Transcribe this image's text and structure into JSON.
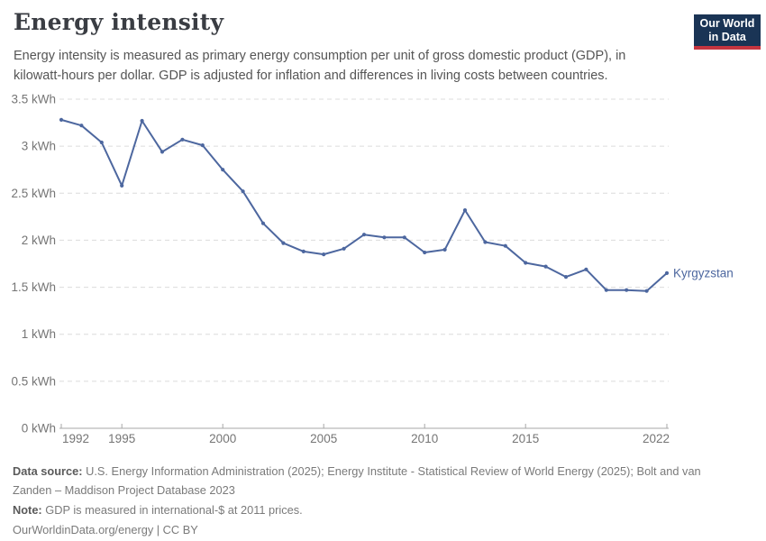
{
  "header": {
    "title": "Energy intensity",
    "subtitle_lines": [
      "Energy intensity is measured as primary energy consumption per unit of gross domestic product (GDP), in",
      "kilowatt-hours per dollar. GDP is adjusted for inflation and differences in living costs between countries."
    ],
    "logo": {
      "line1": "Our World",
      "line2": "in Data"
    }
  },
  "chart_data": {
    "type": "line",
    "title": "Energy intensity",
    "unit": "kWh",
    "x": [
      1992,
      1993,
      1994,
      1995,
      1996,
      1997,
      1998,
      1999,
      2000,
      2001,
      2002,
      2003,
      2004,
      2005,
      2006,
      2007,
      2008,
      2009,
      2010,
      2011,
      2012,
      2013,
      2014,
      2015,
      2016,
      2017,
      2018,
      2019,
      2020,
      2021,
      2022
    ],
    "series": [
      {
        "name": "Kyrgyzstan",
        "color": "#4d679f",
        "values": [
          3.28,
          3.22,
          3.04,
          2.58,
          3.27,
          2.94,
          3.07,
          3.01,
          2.75,
          2.52,
          2.18,
          1.97,
          1.88,
          1.85,
          1.91,
          2.06,
          2.03,
          2.03,
          1.87,
          1.9,
          2.32,
          1.98,
          1.94,
          1.76,
          1.72,
          1.61,
          1.69,
          1.47,
          1.47,
          1.46,
          1.65
        ]
      }
    ],
    "x_ticks": [
      1992,
      1995,
      2000,
      2005,
      2010,
      2015,
      2022
    ],
    "y_ticks": [
      {
        "value": 0,
        "label": "0 kWh"
      },
      {
        "value": 0.5,
        "label": "0.5 kWh"
      },
      {
        "value": 1,
        "label": "1 kWh"
      },
      {
        "value": 1.5,
        "label": "1.5 kWh"
      },
      {
        "value": 2,
        "label": "2 kWh"
      },
      {
        "value": 2.5,
        "label": "2.5 kWh"
      },
      {
        "value": 3,
        "label": "3 kWh"
      },
      {
        "value": 3.5,
        "label": "3.5 kWh"
      }
    ],
    "xlim": [
      1992,
      2022
    ],
    "ylim": [
      0,
      3.5
    ],
    "grid": "horizontal-dashed",
    "legend": "series-end-label"
  },
  "footer": {
    "data_source_label": "Data source:",
    "data_source_line1": "U.S. Energy Information Administration (2025); Energy Institute - Statistical Review of World Energy (2025); Bolt and van",
    "data_source_line2": "Zanden – Maddison Project Database 2023",
    "note_label": "Note:",
    "note_text": "GDP is measured in international-$ at 2011 prices.",
    "citation": "OurWorldinData.org/energy | CC BY"
  },
  "colors": {
    "line": "#4d679f",
    "grid": "#dcdcdc",
    "axis": "#a7a7a7",
    "tick_text": "#757575",
    "title_text": "#3a3d43",
    "logo_navy": "#1a3455",
    "logo_red": "#c53540"
  }
}
